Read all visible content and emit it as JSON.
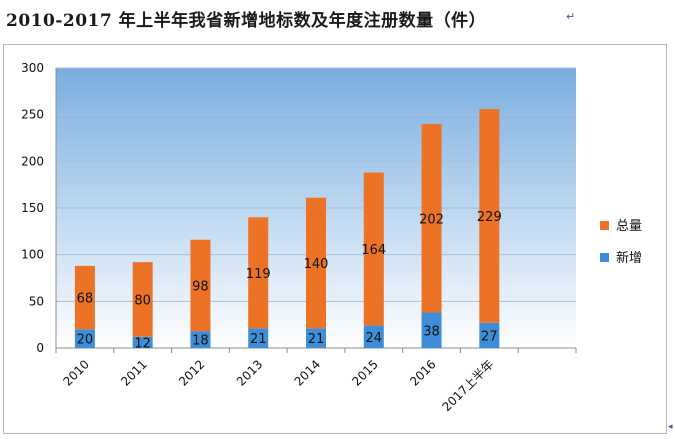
{
  "title": "2010-2017 年上半年我省新增地标数及年度注册数量（件）",
  "title_end_mark": "↵",
  "frame_end_mark": "◂",
  "colors": {
    "total": "#ec7226",
    "new": "#3d8ed6",
    "plot_top": "#7aaee0",
    "plot_bottom": "#ffffff"
  },
  "chart_data": {
    "type": "bar",
    "stacked": true,
    "categories": [
      "2010",
      "2011",
      "2012",
      "2013",
      "2014",
      "2015",
      "2016",
      "2017上半年"
    ],
    "series": [
      {
        "name": "新增",
        "values": [
          20,
          12,
          18,
          21,
          21,
          24,
          38,
          27
        ]
      },
      {
        "name": "总量",
        "values": [
          68,
          80,
          98,
          119,
          140,
          164,
          202,
          229
        ]
      }
    ],
    "ylim": [
      0,
      300
    ],
    "yticks": [
      0,
      50,
      100,
      150,
      200,
      250,
      300
    ],
    "grid": true,
    "legend_position": "right",
    "legend_order": [
      "总量",
      "新增"
    ],
    "xlabel": "",
    "ylabel": ""
  }
}
